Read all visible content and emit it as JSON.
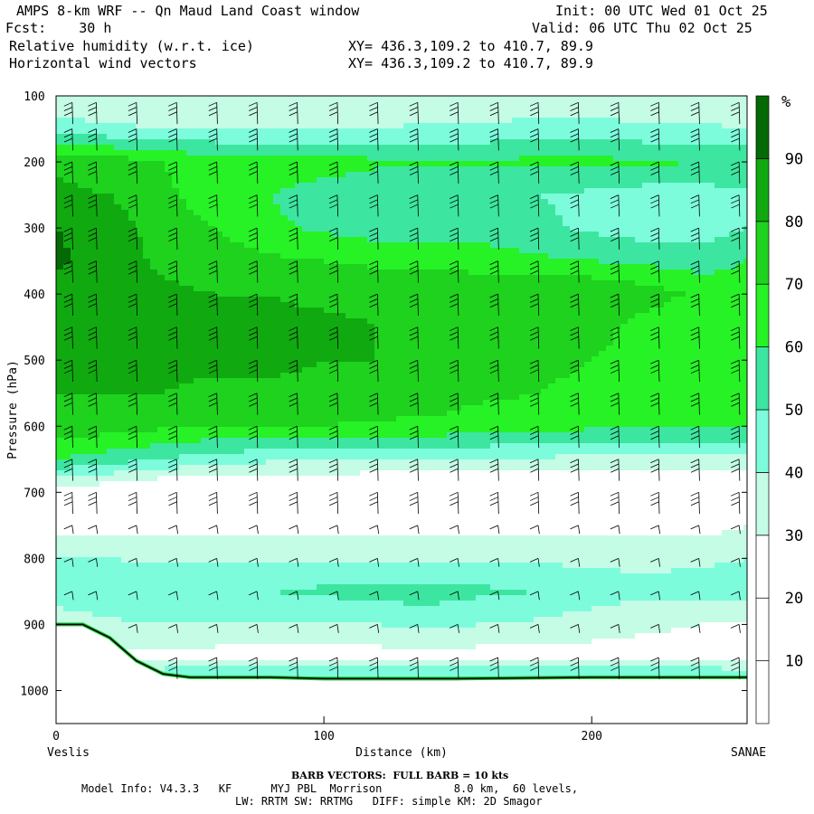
{
  "header": {
    "title": "AMPS 8-km WRF -- Qn Maud Land Coast window",
    "fcst": "Fcst:    30 h",
    "init": "Init: 00 UTC Wed 01 Oct 25",
    "valid": "Valid: 06 UTC Thu 02 Oct 25",
    "field1": "Relative humidity (w.r.t. ice)",
    "field2": "Horizontal wind vectors",
    "xy1": "XY= 436.3,109.2 to 410.7, 89.9",
    "xy2": "XY= 436.3,109.2 to 410.7, 89.9"
  },
  "footer": {
    "barb_note": "BARB VECTORS:  FULL BARB = 10 kts",
    "model_info": "Model Info: V4.3.3   KF      MYJ PBL  Morrison           8.0 km,  60 levels,",
    "physics": "LW: RRTM SW: RRTMG   DIFF: simple KM: 2D Smagor"
  },
  "chart_data": {
    "type": "heatmap",
    "title": "",
    "xlabel": "Distance (km)",
    "ylabel": "Pressure (hPa)",
    "xlim": [
      0,
      258
    ],
    "ylim": [
      1050,
      100
    ],
    "x_ticks": [
      0,
      100,
      200
    ],
    "y_ticks": [
      100,
      200,
      300,
      400,
      500,
      600,
      700,
      800,
      900,
      1000
    ],
    "x_end_labels": {
      "left": "Veslis",
      "right": "SANAE"
    },
    "colorbar": {
      "unit": "%",
      "levels": [
        10,
        20,
        30,
        40,
        50,
        60,
        70,
        80,
        90
      ],
      "colors": [
        "#ffffff",
        "#ffffff",
        "#ffffff",
        "#c4fce6",
        "#7dfcdc",
        "#3ce6a0",
        "#26f226",
        "#1ed21e",
        "#10aa10",
        "#056905"
      ]
    },
    "columns_km": [
      0,
      20,
      40,
      60,
      80,
      100,
      120,
      140,
      160,
      180,
      200,
      220,
      240,
      258
    ],
    "rows_hpa": [
      100,
      150,
      200,
      250,
      300,
      350,
      400,
      450,
      500,
      550,
      600,
      650,
      700,
      750,
      800,
      850,
      900,
      950,
      980
    ],
    "rh_grid": [
      [
        30,
        30,
        30,
        30,
        30,
        30,
        30,
        30,
        30,
        30,
        30,
        30,
        30,
        30
      ],
      [
        45,
        42,
        40,
        40,
        40,
        40,
        40,
        42,
        42,
        45,
        45,
        42,
        42,
        40
      ],
      [
        78,
        75,
        70,
        65,
        65,
        65,
        62,
        62,
        62,
        62,
        62,
        62,
        60,
        60
      ],
      [
        82,
        80,
        72,
        65,
        60,
        55,
        52,
        52,
        52,
        50,
        48,
        45,
        45,
        48
      ],
      [
        90,
        85,
        75,
        70,
        62,
        58,
        55,
        55,
        55,
        52,
        48,
        45,
        45,
        50
      ],
      [
        92,
        85,
        78,
        75,
        72,
        70,
        68,
        68,
        65,
        62,
        60,
        58,
        55,
        60
      ],
      [
        85,
        82,
        82,
        80,
        80,
        78,
        78,
        78,
        78,
        80,
        80,
        75,
        68,
        65
      ],
      [
        82,
        82,
        82,
        82,
        82,
        82,
        80,
        80,
        80,
        80,
        75,
        65,
        62,
        65
      ],
      [
        80,
        80,
        82,
        82,
        82,
        80,
        80,
        78,
        75,
        72,
        70,
        65,
        62,
        62
      ],
      [
        80,
        80,
        80,
        78,
        78,
        78,
        78,
        75,
        72,
        70,
        68,
        65,
        62,
        62
      ],
      [
        75,
        75,
        72,
        70,
        70,
        70,
        68,
        68,
        65,
        65,
        62,
        62,
        62,
        60
      ],
      [
        60,
        55,
        50,
        45,
        42,
        42,
        40,
        40,
        40,
        38,
        38,
        38,
        38,
        38
      ],
      [
        25,
        20,
        15,
        15,
        15,
        15,
        15,
        15,
        15,
        15,
        15,
        15,
        15,
        15
      ],
      [
        25,
        25,
        25,
        25,
        25,
        25,
        25,
        25,
        25,
        25,
        25,
        25,
        25,
        30
      ],
      [
        40,
        40,
        38,
        38,
        38,
        38,
        38,
        38,
        38,
        38,
        38,
        38,
        38,
        40
      ],
      [
        45,
        48,
        50,
        50,
        50,
        52,
        55,
        55,
        52,
        50,
        45,
        42,
        45,
        45
      ],
      [
        35,
        38,
        40,
        40,
        40,
        38,
        40,
        42,
        40,
        38,
        35,
        32,
        30,
        30
      ],
      [
        20,
        25,
        28,
        25,
        25,
        25,
        25,
        25,
        25,
        25,
        25,
        25,
        25,
        25
      ],
      [
        40,
        45,
        50,
        55,
        55,
        55,
        55,
        55,
        55,
        55,
        55,
        55,
        55,
        50
      ]
    ],
    "terrain_hpa": [
      [
        0,
        900
      ],
      [
        10,
        900
      ],
      [
        20,
        920
      ],
      [
        30,
        955
      ],
      [
        40,
        975
      ],
      [
        50,
        980
      ],
      [
        80,
        980
      ],
      [
        100,
        982
      ],
      [
        150,
        982
      ],
      [
        200,
        980
      ],
      [
        258,
        980
      ]
    ],
    "barb_columns_km": [
      6,
      15,
      30,
      45,
      60,
      75,
      90,
      105,
      120,
      135,
      150,
      165,
      180,
      195,
      210,
      225,
      240,
      255
    ],
    "barb_levels_hpa": [
      110,
      150,
      200,
      250,
      300,
      350,
      400,
      450,
      500,
      550,
      600,
      650,
      700,
      750,
      800,
      850,
      900,
      950
    ]
  }
}
